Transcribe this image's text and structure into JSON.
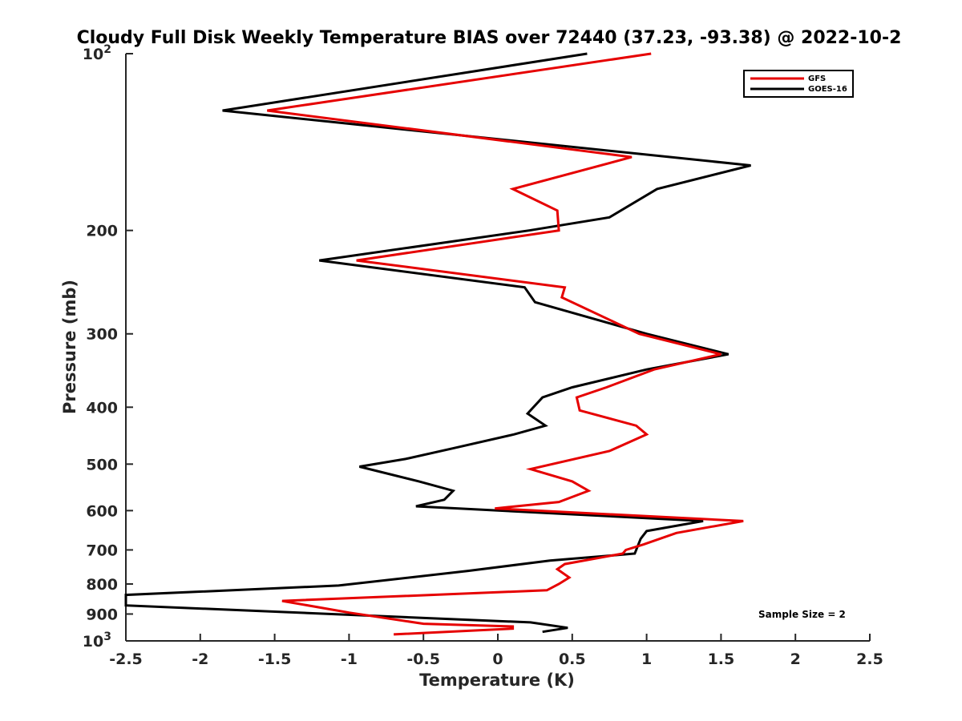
{
  "chart_data": {
    "type": "line",
    "title": "Cloudy Full Disk Weekly Temperature BIAS over 72440 (37.23, -93.38) @ 2022-10-2",
    "xlabel": "Temperature (K)",
    "ylabel": "Pressure (mb)",
    "xlim": [
      -2.5,
      2.5
    ],
    "ylim": [
      100,
      1000
    ],
    "y_scale": "log",
    "y_reversed": true,
    "x_ticks": [
      "-2.5",
      "-2",
      "-1.5",
      "-1",
      "-0.5",
      "0",
      "0.5",
      "1",
      "1.5",
      "2",
      "2.5"
    ],
    "y_ticks": [
      {
        "value": 100,
        "label": "10",
        "sup": "2"
      },
      {
        "value": 200,
        "label": "200",
        "sup": ""
      },
      {
        "value": 300,
        "label": "300",
        "sup": ""
      },
      {
        "value": 400,
        "label": "400",
        "sup": ""
      },
      {
        "value": 500,
        "label": "500",
        "sup": ""
      },
      {
        "value": 600,
        "label": "600",
        "sup": ""
      },
      {
        "value": 700,
        "label": "700",
        "sup": ""
      },
      {
        "value": 800,
        "label": "800",
        "sup": ""
      },
      {
        "value": 900,
        "label": "900",
        "sup": ""
      },
      {
        "value": 1000,
        "label": "10",
        "sup": "3"
      }
    ],
    "legend_position": "top-right",
    "annotation": "Sample Size = 2",
    "series": [
      {
        "name": "GFS",
        "color": "#e60000",
        "points": [
          [
            1.03,
            100
          ],
          [
            -1.55,
            125
          ],
          [
            0.9,
            150
          ],
          [
            0.1,
            170
          ],
          [
            0.4,
            185
          ],
          [
            0.41,
            200
          ],
          [
            -0.95,
            225
          ],
          [
            0.45,
            250
          ],
          [
            0.43,
            260
          ],
          [
            0.95,
            300
          ],
          [
            1.5,
            325
          ],
          [
            1.05,
            345
          ],
          [
            0.73,
            370
          ],
          [
            0.53,
            385
          ],
          [
            0.55,
            405
          ],
          [
            0.93,
            430
          ],
          [
            1.0,
            445
          ],
          [
            0.75,
            475
          ],
          [
            0.22,
            510
          ],
          [
            0.5,
            535
          ],
          [
            0.61,
            555
          ],
          [
            0.41,
            580
          ],
          [
            -0.02,
            595
          ],
          [
            1.65,
            625
          ],
          [
            1.2,
            655
          ],
          [
            0.98,
            685
          ],
          [
            0.86,
            700
          ],
          [
            0.84,
            710
          ],
          [
            0.45,
            740
          ],
          [
            0.4,
            755
          ],
          [
            0.48,
            780
          ],
          [
            0.41,
            800
          ],
          [
            0.33,
            820
          ],
          [
            -1.45,
            855
          ],
          [
            -1.0,
            895
          ],
          [
            -0.5,
            935
          ],
          [
            0.1,
            945
          ],
          [
            0.1,
            953
          ],
          [
            -0.7,
            975
          ]
        ]
      },
      {
        "name": "GOES-16",
        "color": "#000000",
        "points": [
          [
            0.6,
            100
          ],
          [
            -1.85,
            125
          ],
          [
            1.7,
            155
          ],
          [
            1.07,
            170
          ],
          [
            0.75,
            190
          ],
          [
            0.21,
            200
          ],
          [
            -1.2,
            225
          ],
          [
            0.18,
            250
          ],
          [
            0.25,
            265
          ],
          [
            1.0,
            300
          ],
          [
            1.55,
            325
          ],
          [
            1.0,
            345
          ],
          [
            0.5,
            370
          ],
          [
            0.3,
            385
          ],
          [
            0.2,
            410
          ],
          [
            0.32,
            430
          ],
          [
            0.11,
            445
          ],
          [
            -0.3,
            470
          ],
          [
            -0.62,
            490
          ],
          [
            -0.93,
            505
          ],
          [
            -0.53,
            535
          ],
          [
            -0.3,
            555
          ],
          [
            -0.36,
            575
          ],
          [
            -0.55,
            590
          ],
          [
            1.38,
            625
          ],
          [
            1.0,
            650
          ],
          [
            0.96,
            670
          ],
          [
            0.95,
            680
          ],
          [
            0.92,
            710
          ],
          [
            0.35,
            730
          ],
          [
            -0.2,
            760
          ],
          [
            -1.07,
            805
          ],
          [
            -2.5,
            835
          ],
          [
            -2.5,
            870
          ],
          [
            0.22,
            930
          ],
          [
            0.47,
            950
          ],
          [
            0.3,
            965
          ]
        ]
      }
    ]
  }
}
